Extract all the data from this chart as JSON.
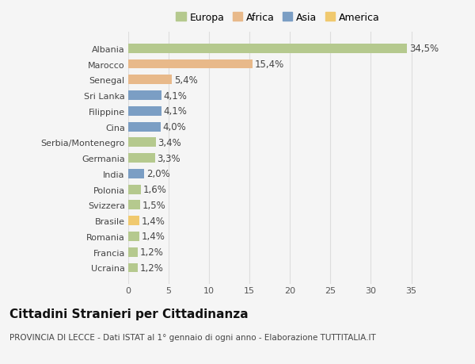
{
  "title": "Cittadini Stranieri per Cittadinanza",
  "subtitle": "PROVINCIA DI LECCE - Dati ISTAT al 1° gennaio di ogni anno - Elaborazione TUTTITALIA.IT",
  "categories": [
    "Albania",
    "Marocco",
    "Senegal",
    "Sri Lanka",
    "Filippine",
    "Cina",
    "Serbia/Montenegro",
    "Germania",
    "India",
    "Polonia",
    "Svizzera",
    "Brasile",
    "Romania",
    "Francia",
    "Ucraina"
  ],
  "values": [
    34.5,
    15.4,
    5.4,
    4.1,
    4.1,
    4.0,
    3.4,
    3.3,
    2.0,
    1.6,
    1.5,
    1.4,
    1.4,
    1.2,
    1.2
  ],
  "labels": [
    "34,5%",
    "15,4%",
    "5,4%",
    "4,1%",
    "4,1%",
    "4,0%",
    "3,4%",
    "3,3%",
    "2,0%",
    "1,6%",
    "1,5%",
    "1,4%",
    "1,4%",
    "1,2%",
    "1,2%"
  ],
  "continents": [
    "Europa",
    "Africa",
    "Africa",
    "Asia",
    "Asia",
    "Asia",
    "Europa",
    "Europa",
    "Asia",
    "Europa",
    "Europa",
    "America",
    "Europa",
    "Europa",
    "Europa"
  ],
  "colors": {
    "Europa": "#b5c98e",
    "Africa": "#e8b98a",
    "Asia": "#7b9ec4",
    "America": "#f0c96e"
  },
  "legend_order": [
    "Europa",
    "Africa",
    "Asia",
    "America"
  ],
  "xlim": [
    0,
    37
  ],
  "xticks": [
    0,
    5,
    10,
    15,
    20,
    25,
    30,
    35
  ],
  "background_color": "#f5f5f5",
  "grid_color": "#dddddd",
  "bar_height": 0.6,
  "label_fontsize": 8.5,
  "title_fontsize": 11,
  "subtitle_fontsize": 7.5,
  "tick_fontsize": 8,
  "legend_fontsize": 9
}
